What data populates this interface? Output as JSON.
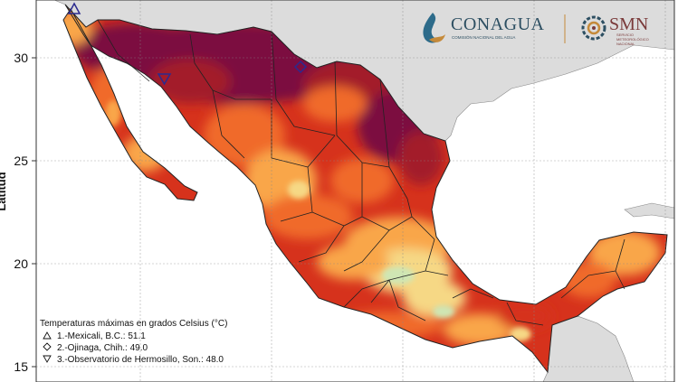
{
  "map": {
    "axis": {
      "y_title": "Latitud",
      "y_ticks": [
        "30",
        "25",
        "20",
        "15"
      ]
    },
    "colors": {
      "ocean": "#ffffff",
      "land_outside": "#dcdcdc",
      "hottest": "#7c1140",
      "very_hot": "#a31a2c",
      "hot": "#d6321c",
      "warm": "#f06a2a",
      "mild": "#f9a64a",
      "cool": "#f6d885",
      "coolest": "#cfe6b4"
    }
  },
  "logos": {
    "conagua": {
      "name": "CONAGUA",
      "subtitle": "COMISIÓN NACIONAL DEL AGUA"
    },
    "smn": {
      "name": "SMN",
      "subtitle_lines": [
        "SERVICIO",
        "METEOROLÓGICO",
        "NACIONAL"
      ]
    }
  },
  "legend": {
    "title": "Temperaturas máximas en grados Celsius (°C)",
    "items": [
      {
        "symbol": "triangle-up",
        "text": "1.-Mexicali, B.C.: 51.1"
      },
      {
        "symbol": "diamond",
        "text": "2.-Ojinaga, Chih.: 49.0"
      },
      {
        "symbol": "triangle-down",
        "text": "3.-Observatorio de Hermosillo, Son.: 48.0"
      }
    ]
  }
}
